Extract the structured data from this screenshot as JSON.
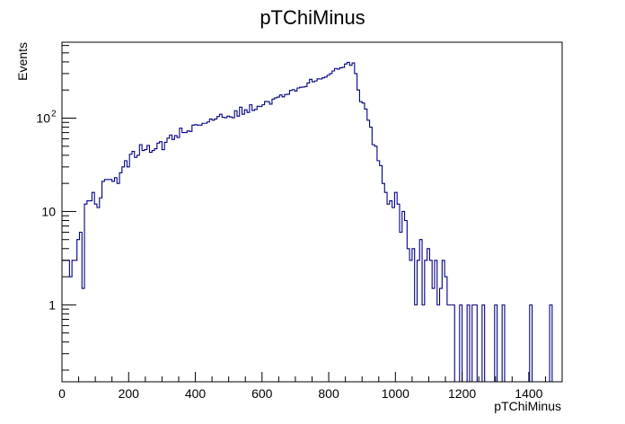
{
  "chart_data": {
    "type": "histogram",
    "title": "pTChiMinus",
    "xlabel": "pTChiMinus",
    "ylabel": "Events",
    "xlim": [
      0,
      1500
    ],
    "ylim": [
      0.15,
      650
    ],
    "yscale": "log",
    "grid": false,
    "line_color": "#000080",
    "bin_width": 7.5,
    "x_ticks": [
      0,
      200,
      400,
      600,
      800,
      1000,
      1200,
      1400
    ],
    "y_ticks": [
      {
        "value": 1,
        "label": "1"
      },
      {
        "value": 10,
        "label": "10"
      },
      {
        "value": 100,
        "label": "10",
        "sup": "2"
      }
    ],
    "values": [
      3,
      3,
      3,
      2,
      3,
      3,
      5,
      6,
      1.5,
      12,
      13,
      13,
      16,
      12,
      11,
      14,
      21,
      22,
      22,
      22,
      21,
      23,
      20,
      26,
      30,
      35,
      30,
      41,
      44,
      38,
      40,
      52,
      45,
      46,
      51,
      43,
      45,
      47,
      54,
      56,
      46,
      55,
      61,
      66,
      59,
      65,
      62,
      78,
      70,
      70,
      73,
      72,
      84,
      85,
      84,
      84,
      88,
      88,
      91,
      98,
      95,
      98,
      104,
      110,
      102,
      101,
      105,
      103,
      101,
      120,
      105,
      131,
      110,
      123,
      115,
      139,
      121,
      124,
      134,
      133,
      139,
      151,
      150,
      141,
      160,
      165,
      168,
      177,
      169,
      179,
      180,
      198,
      202,
      195,
      210,
      214,
      215,
      218,
      238,
      260,
      245,
      250,
      263,
      262,
      270,
      275,
      288,
      300,
      320,
      340,
      335,
      345,
      350,
      380,
      395,
      368,
      390,
      300,
      200,
      150,
      145,
      125,
      95,
      80,
      52,
      50,
      35,
      31,
      20,
      16,
      12,
      13,
      11,
      16,
      12,
      6,
      10,
      8,
      4,
      3,
      4,
      1,
      3,
      5,
      1,
      3,
      4,
      3,
      1.5,
      3,
      1,
      1.5,
      3,
      2,
      1,
      1,
      1,
      0.1,
      0.1,
      1,
      0.1,
      0.1,
      1,
      0.1,
      1,
      1,
      0.1,
      0.1,
      1,
      0.1,
      0.1,
      0.1,
      0.1,
      1,
      0.1,
      0.1,
      1,
      0.1,
      0.1,
      0.1,
      0.1,
      0.1,
      0.1,
      0.1,
      0.1,
      0.1,
      0.1,
      1,
      0.1,
      0.1,
      0.1,
      0.1,
      0.1,
      0.1,
      0.1,
      1,
      0.1
    ]
  }
}
